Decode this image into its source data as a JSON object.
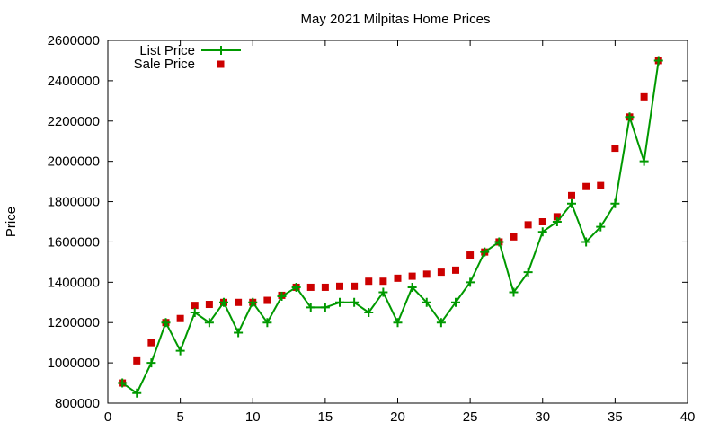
{
  "chart_data": {
    "type": "line",
    "title": "May 2021 Milpitas Home Prices",
    "xlabel": "",
    "ylabel": "Price",
    "xlim": [
      0,
      40
    ],
    "ylim": [
      800000,
      2600000
    ],
    "xticks": [
      0,
      5,
      10,
      15,
      20,
      25,
      30,
      35,
      40
    ],
    "yticks": [
      800000,
      1000000,
      1200000,
      1400000,
      1600000,
      1800000,
      2000000,
      2200000,
      2400000,
      2600000
    ],
    "grid": false,
    "legend_position": "top-left",
    "colors": {
      "list_price": "#009900",
      "sale_price": "#cc0000"
    },
    "series": [
      {
        "name": "List Price",
        "type": "line",
        "marker": "plus",
        "x": [
          1,
          2,
          3,
          4,
          5,
          6,
          7,
          8,
          9,
          10,
          11,
          12,
          13,
          14,
          15,
          16,
          17,
          18,
          19,
          20,
          21,
          22,
          23,
          24,
          25,
          26,
          27,
          28,
          29,
          30,
          31,
          32,
          33,
          34,
          35,
          36,
          37,
          38
        ],
        "values": [
          900000,
          850000,
          1000000,
          1200000,
          1060000,
          1250000,
          1200000,
          1300000,
          1150000,
          1300000,
          1200000,
          1330000,
          1375000,
          1275000,
          1275000,
          1300000,
          1300000,
          1250000,
          1350000,
          1200000,
          1375000,
          1300000,
          1200000,
          1300000,
          1400000,
          1550000,
          1600000,
          1350000,
          1450000,
          1650000,
          1700000,
          1790000,
          1600000,
          1675000,
          1790000,
          2220000,
          2000000,
          2500000
        ]
      },
      {
        "name": "Sale Price",
        "type": "scatter",
        "marker": "square",
        "x": [
          1,
          2,
          3,
          4,
          5,
          6,
          7,
          8,
          9,
          10,
          11,
          12,
          13,
          14,
          15,
          16,
          17,
          18,
          19,
          20,
          21,
          22,
          23,
          24,
          25,
          26,
          27,
          28,
          29,
          30,
          31,
          32,
          33,
          34,
          35,
          36,
          37,
          38
        ],
        "values": [
          900000,
          1010000,
          1100000,
          1200000,
          1220000,
          1285000,
          1290000,
          1300000,
          1300000,
          1300000,
          1310000,
          1335000,
          1375000,
          1375000,
          1375000,
          1380000,
          1380000,
          1405000,
          1405000,
          1420000,
          1430000,
          1440000,
          1450000,
          1460000,
          1535000,
          1550000,
          1600000,
          1625000,
          1685000,
          1700000,
          1725000,
          1830000,
          1875000,
          1880000,
          2065000,
          2220000,
          2320000,
          2500000
        ]
      }
    ]
  }
}
